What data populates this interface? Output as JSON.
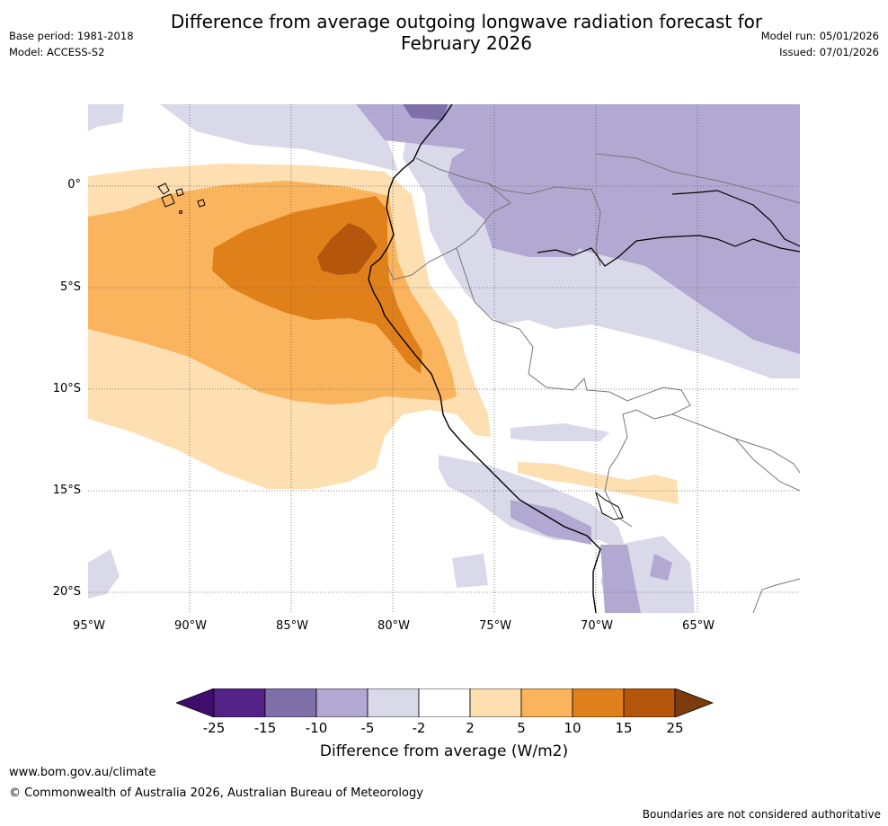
{
  "header": {
    "title_line1": "Difference from average outgoing longwave radiation forecast for",
    "title_line2": "February 2026",
    "base_period": "Base period: 1981-2018",
    "model": "Model: ACCESS-S2",
    "model_run": "Model run: 05/01/2026",
    "issued": "Issued: 07/01/2026"
  },
  "map": {
    "lat_labels": [
      "0°",
      "5°S",
      "10°S",
      "15°S",
      "20°S"
    ],
    "lon_labels": [
      "95°W",
      "90°W",
      "85°W",
      "80°W",
      "75°W",
      "70°W",
      "65°W"
    ]
  },
  "colorbar": {
    "ticks": [
      "-25",
      "-15",
      "-10",
      "-5",
      "-2",
      "2",
      "5",
      "10",
      "15",
      "25"
    ],
    "colors": [
      "#3f0d6b",
      "#542388",
      "#7f70a9",
      "#b1a9d1",
      "#d9d9ea",
      "#ffffff",
      "#fddfb2",
      "#fab45d",
      "#e0801a",
      "#b4560b",
      "#7c3b0a"
    ],
    "label": "Difference from average (W/m2)"
  },
  "footer": {
    "url": "www.bom.gov.au/climate",
    "copyright": "© Commonwealth of Australia 2026, Australian Bureau of Meteorology",
    "disclaimer": "Boundaries are not considered authoritative"
  }
}
